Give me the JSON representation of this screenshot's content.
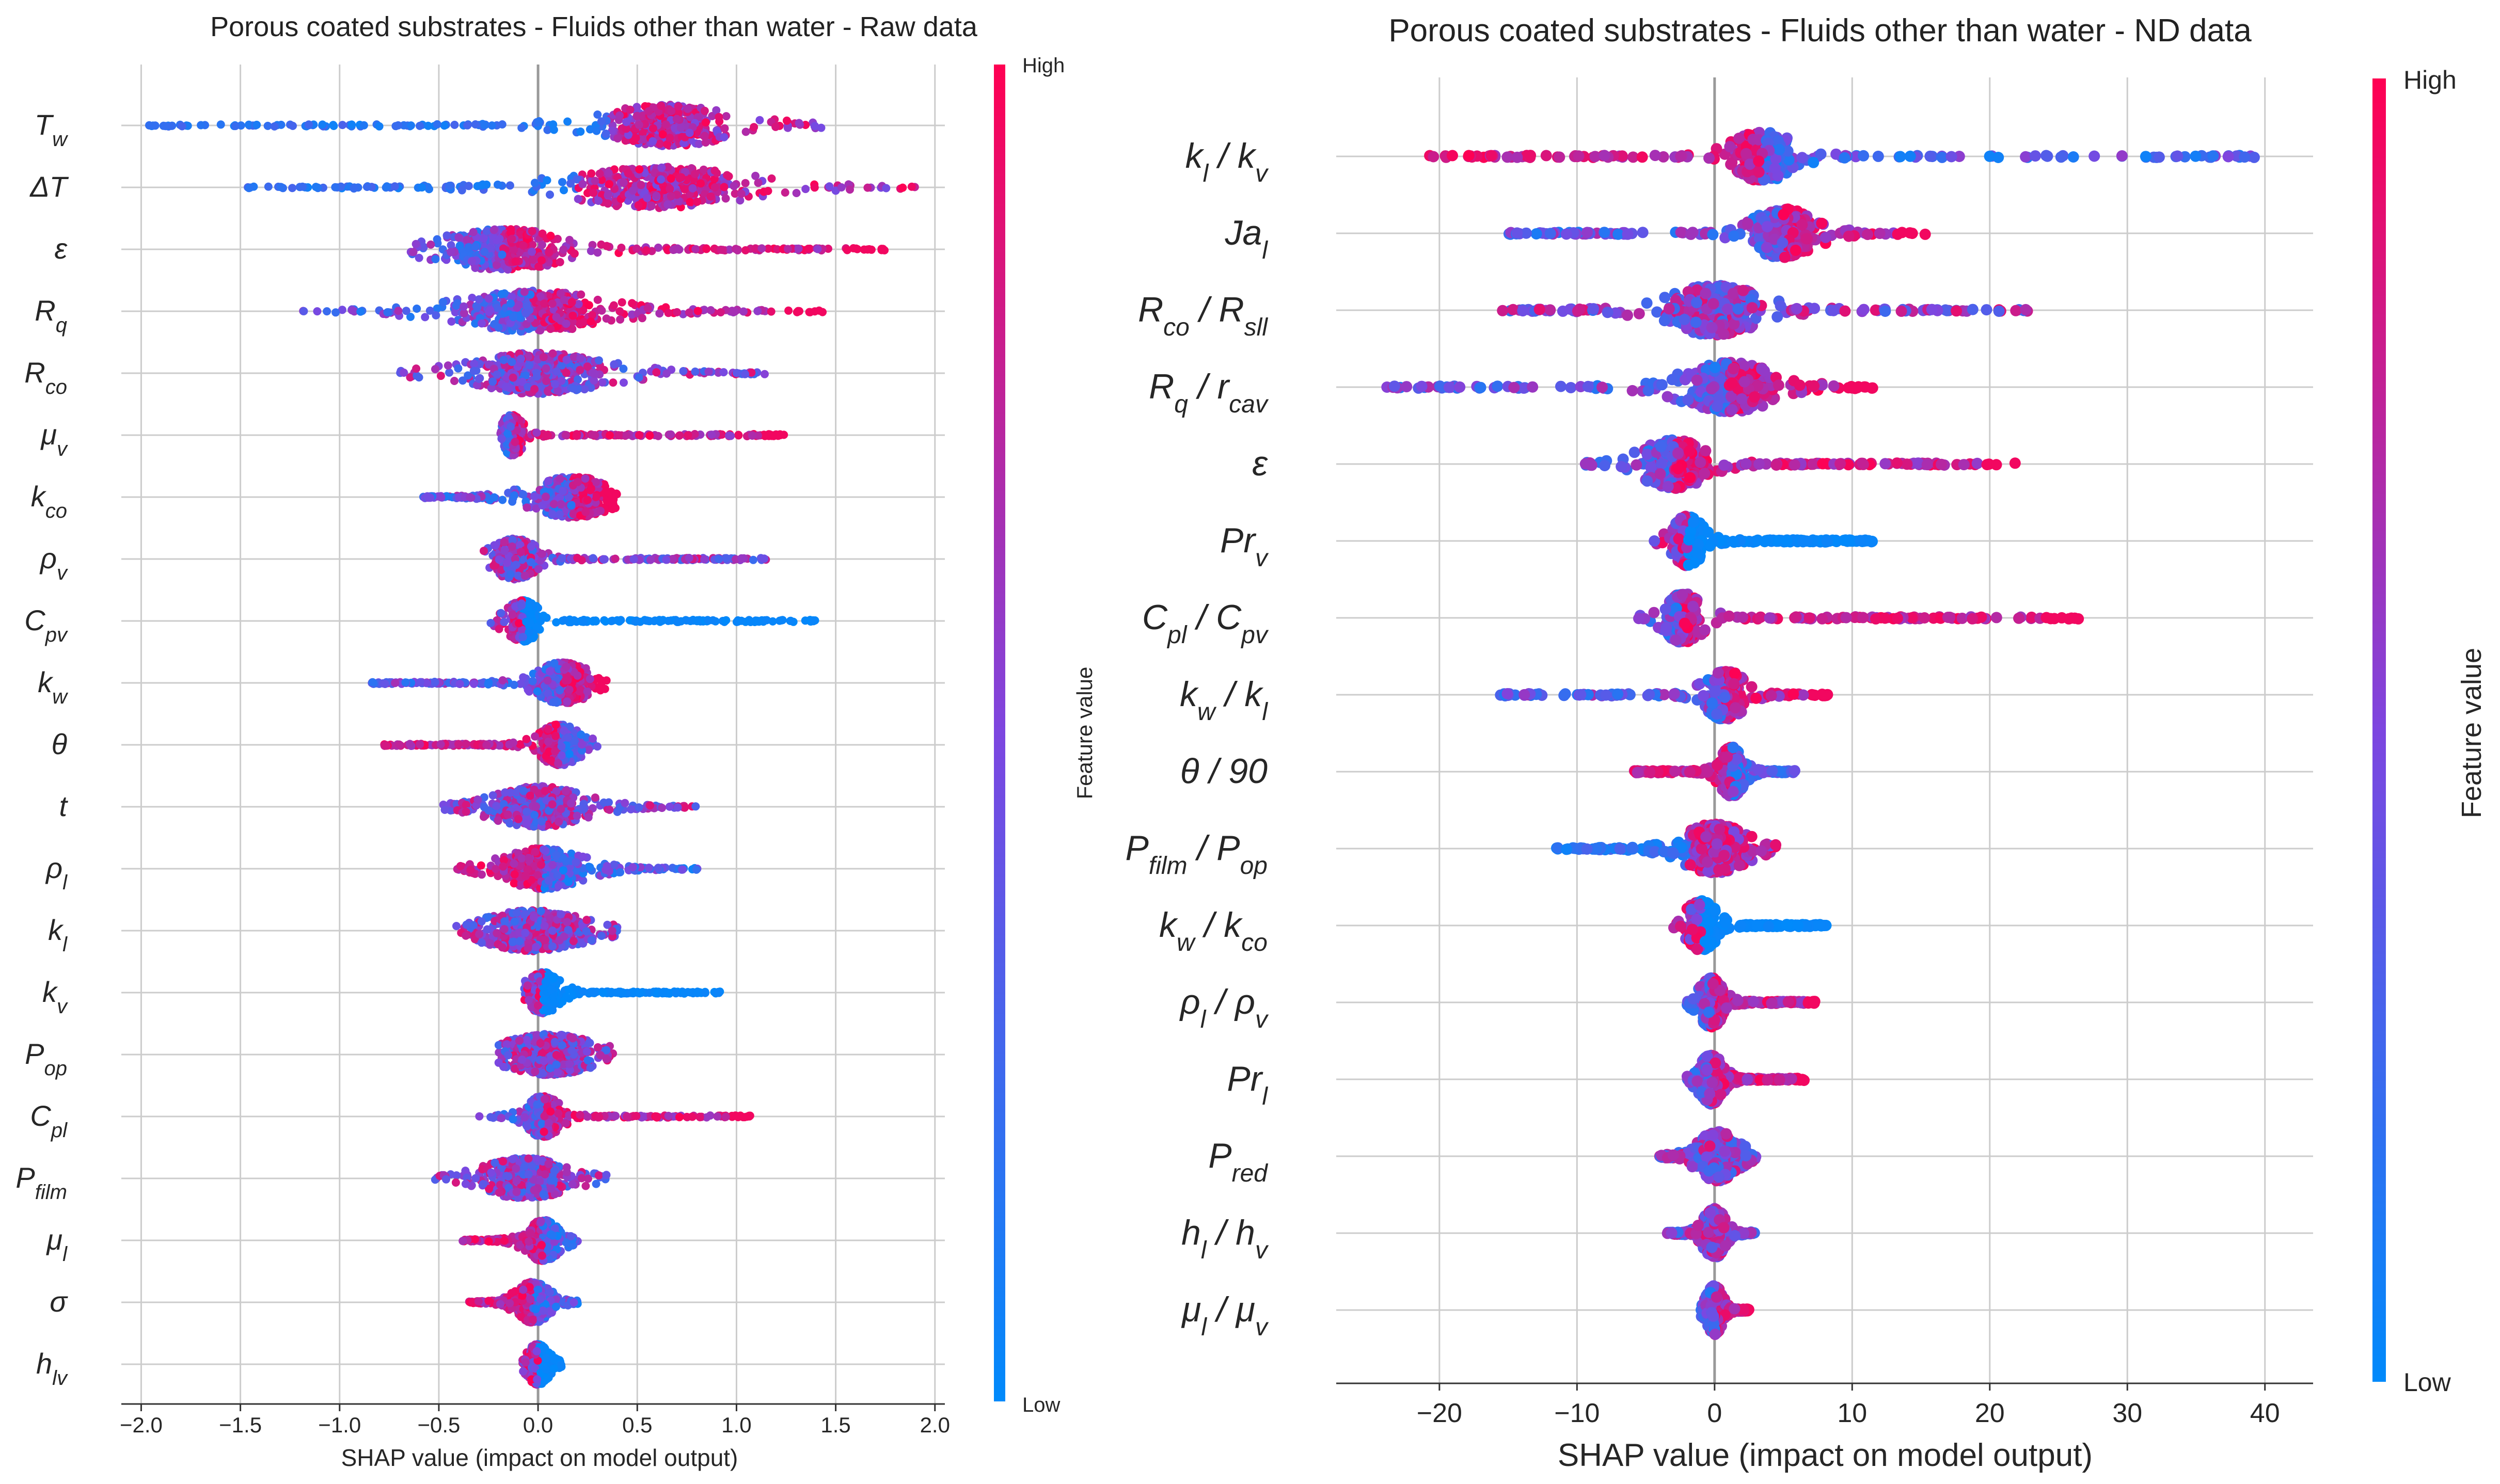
{
  "colors": {
    "low": "#008afb",
    "mid": "#7d46e0",
    "high": "#ff0052",
    "grid": "#cccccc",
    "zero": "#999999"
  },
  "chart_data": [
    {
      "type": "scatter",
      "subtype": "shap-beeswarm",
      "title": "Porous coated substrates - Fluids other than water - Raw data",
      "xlabel": "SHAP value (impact on model output)",
      "colorbar_label": "Feature value",
      "colorbar_high": "High",
      "colorbar_low": "Low",
      "xlim": [
        -2.1,
        2.05
      ],
      "xticks": [
        -2.0,
        -1.5,
        -1.0,
        -0.5,
        0.0,
        0.5,
        1.0,
        1.5,
        2.0
      ],
      "xtick_labels": [
        "−2.0",
        "−1.5",
        "−1.0",
        "−0.5",
        "0.0",
        "0.5",
        "1.0",
        "1.5",
        "2.0"
      ],
      "features": [
        {
          "name": "Tw",
          "base": "T",
          "sub": "w",
          "min": -2.0,
          "max": 1.45,
          "core": [
            0.35,
            0.95
          ],
          "pattern": "lowneg"
        },
        {
          "name": "ΔT",
          "base": "ΔT",
          "sub": "",
          "min": -1.55,
          "max": 1.9,
          "core": [
            0.2,
            1.0
          ],
          "pattern": "lowneg"
        },
        {
          "name": "ε",
          "base": "ε",
          "sub": "",
          "min": -0.65,
          "max": 1.75,
          "core": [
            -0.45,
            0.1
          ],
          "pattern": "highpos"
        },
        {
          "name": "Rq",
          "base": "R",
          "sub": "q",
          "min": -1.2,
          "max": 1.45,
          "core": [
            -0.35,
            0.3
          ],
          "pattern": "highpos"
        },
        {
          "name": "Rco",
          "base": "R",
          "sub": "co",
          "min": -0.7,
          "max": 1.15,
          "core": [
            -0.3,
            0.3
          ],
          "pattern": "mixed"
        },
        {
          "name": "μv",
          "base": "μ",
          "sub": "v",
          "min": -0.2,
          "max": 1.25,
          "core": [
            -0.18,
            -0.08
          ],
          "pattern": "highpos"
        },
        {
          "name": "kco",
          "base": "k",
          "sub": "co",
          "min": -0.58,
          "max": 0.4,
          "core": [
            0.0,
            0.35
          ],
          "pattern": "highpos"
        },
        {
          "name": "ρv",
          "base": "ρ",
          "sub": "v",
          "min": -0.28,
          "max": 1.15,
          "core": [
            -0.22,
            -0.02
          ],
          "pattern": "mixed"
        },
        {
          "name": "Cpv",
          "base": "C",
          "sub": "pv",
          "min": -0.25,
          "max": 1.4,
          "core": [
            -0.15,
            0.0
          ],
          "pattern": "lowpos"
        },
        {
          "name": "kw",
          "base": "k",
          "sub": "w",
          "min": -0.85,
          "max": 0.37,
          "core": [
            0.0,
            0.25
          ],
          "pattern": "highpos"
        },
        {
          "name": "θ",
          "base": "θ",
          "sub": "",
          "min": -0.78,
          "max": 0.3,
          "core": [
            0.02,
            0.2
          ],
          "pattern": "highneg"
        },
        {
          "name": "t",
          "base": "t",
          "sub": "",
          "min": -0.48,
          "max": 0.8,
          "core": [
            -0.2,
            0.2
          ],
          "pattern": "mixed"
        },
        {
          "name": "ρl",
          "base": "ρ",
          "sub": "l",
          "min": -0.42,
          "max": 0.82,
          "core": [
            -0.15,
            0.2
          ],
          "pattern": "highneg"
        },
        {
          "name": "kl",
          "base": "k",
          "sub": "l",
          "min": -0.42,
          "max": 0.4,
          "core": [
            -0.25,
            0.2
          ],
          "pattern": "mixed"
        },
        {
          "name": "kv",
          "base": "k",
          "sub": "v",
          "min": -0.1,
          "max": 0.92,
          "core": [
            -0.05,
            0.1
          ],
          "pattern": "lowpos"
        },
        {
          "name": "Pop",
          "base": "P",
          "sub": "op",
          "min": -0.2,
          "max": 0.38,
          "core": [
            -0.15,
            0.25
          ],
          "pattern": "mixed"
        },
        {
          "name": "Cpl",
          "base": "C",
          "sub": "pl",
          "min": -0.3,
          "max": 1.08,
          "core": [
            -0.05,
            0.1
          ],
          "pattern": "highpos"
        },
        {
          "name": "Pfilm",
          "base": "P",
          "sub": "film",
          "min": -0.52,
          "max": 0.35,
          "core": [
            -0.25,
            0.12
          ],
          "pattern": "mixed"
        },
        {
          "name": "μl",
          "base": "μ",
          "sub": "l",
          "min": -0.38,
          "max": 0.2,
          "core": [
            -0.05,
            0.1
          ],
          "pattern": "highneg"
        },
        {
          "name": "σ",
          "base": "σ",
          "sub": "",
          "min": -0.35,
          "max": 0.2,
          "core": [
            -0.1,
            0.05
          ],
          "pattern": "highneg"
        },
        {
          "name": "hlv",
          "base": "h",
          "sub": "lv",
          "min": -0.08,
          "max": 0.12,
          "core": [
            -0.05,
            0.05
          ],
          "pattern": "lowpos"
        }
      ]
    },
    {
      "type": "scatter",
      "subtype": "shap-beeswarm",
      "title": "Porous coated substrates - Fluids other than water - ND data",
      "xlabel": "SHAP value (impact on model output)",
      "colorbar_label": "Feature value",
      "colorbar_high": "High",
      "colorbar_low": "Low",
      "xlim": [
        -27.5,
        43.5
      ],
      "xticks": [
        -20,
        -10,
        0,
        10,
        20,
        30,
        40
      ],
      "xtick_labels": [
        "−20",
        "−10",
        "0",
        "10",
        "20",
        "30",
        "40"
      ],
      "features": [
        {
          "name": "kl/kv",
          "base": "k",
          "sub": "l",
          "rest": " / k",
          "sub2": "v",
          "min": -21,
          "max": 40,
          "core": [
            1.5,
            5.5
          ],
          "pattern": "highneg"
        },
        {
          "name": "Jal",
          "base": "Ja",
          "sub": "l",
          "min": -15,
          "max": 15.5,
          "core": [
            3,
            7
          ],
          "pattern": "highpos"
        },
        {
          "name": "Rco/Rsll",
          "base": "R",
          "sub": "co",
          "rest": " / R",
          "sub2": "sll",
          "min": -15.5,
          "max": 23.5,
          "core": [
            -3,
            3
          ],
          "pattern": "mixed"
        },
        {
          "name": "Rq/rcav",
          "base": "R",
          "sub": "q",
          "rest": " / r",
          "sub2": "cav",
          "min": -24,
          "max": 11.5,
          "core": [
            -2,
            4
          ],
          "pattern": "highpos"
        },
        {
          "name": "ε",
          "base": "ε",
          "sub": "",
          "min": -9.5,
          "max": 22,
          "core": [
            -5,
            -1
          ],
          "pattern": "highpos"
        },
        {
          "name": "Prv",
          "base": "Pr",
          "sub": "v",
          "min": -4.5,
          "max": 11.5,
          "core": [
            -3,
            -1
          ],
          "pattern": "lowpos"
        },
        {
          "name": "Cpl/Cpv",
          "base": "C",
          "sub": "pl",
          "rest": " / C",
          "sub2": "pv",
          "min": -6,
          "max": 26.5,
          "core": [
            -3.5,
            -1
          ],
          "pattern": "highpos"
        },
        {
          "name": "kw/kl",
          "base": "k",
          "sub": "w",
          "rest": " / k",
          "sub2": "l",
          "min": -16,
          "max": 8.5,
          "core": [
            -0.5,
            2
          ],
          "pattern": "highpos"
        },
        {
          "name": "θ/90",
          "base": "θ",
          "sub": "",
          "rest": " / 90",
          "sub2": "",
          "min": -6,
          "max": 6,
          "core": [
            0.5,
            2
          ],
          "pattern": "highneg"
        },
        {
          "name": "Pfilm/Pop",
          "base": "P",
          "sub": "film",
          "rest": " / P",
          "sub2": "op",
          "min": -11.5,
          "max": 4.5,
          "core": [
            -2,
            2
          ],
          "pattern": "lowneg"
        },
        {
          "name": "kw/kco",
          "base": "k",
          "sub": "w",
          "rest": " / k",
          "sub2": "co",
          "min": -3,
          "max": 8.5,
          "core": [
            -2,
            0
          ],
          "pattern": "lowpos"
        },
        {
          "name": "ρl/ρv",
          "base": "ρ",
          "sub": "l",
          "rest": " / ρ",
          "sub2": "v",
          "min": -2,
          "max": 7.5,
          "core": [
            -1,
            0.5
          ],
          "pattern": "highpos"
        },
        {
          "name": "Prl",
          "base": "Pr",
          "sub": "l",
          "min": -2,
          "max": 6.5,
          "core": [
            -1,
            0.5
          ],
          "pattern": "highpos"
        },
        {
          "name": "Pred",
          "base": "P",
          "sub": "red",
          "min": -4,
          "max": 3,
          "core": [
            -1,
            1.5
          ],
          "pattern": "mixed"
        },
        {
          "name": "hl/hv",
          "base": "h",
          "sub": "l",
          "rest": " / h",
          "sub2": "v",
          "min": -3.5,
          "max": 3,
          "core": [
            -0.7,
            0.7
          ],
          "pattern": "mixed"
        },
        {
          "name": "μl/μv",
          "base": "μ",
          "sub": "l",
          "rest": " / μ",
          "sub2": "v",
          "min": -1,
          "max": 2.5,
          "core": [
            -0.5,
            0.5
          ],
          "pattern": "highpos"
        }
      ]
    }
  ]
}
